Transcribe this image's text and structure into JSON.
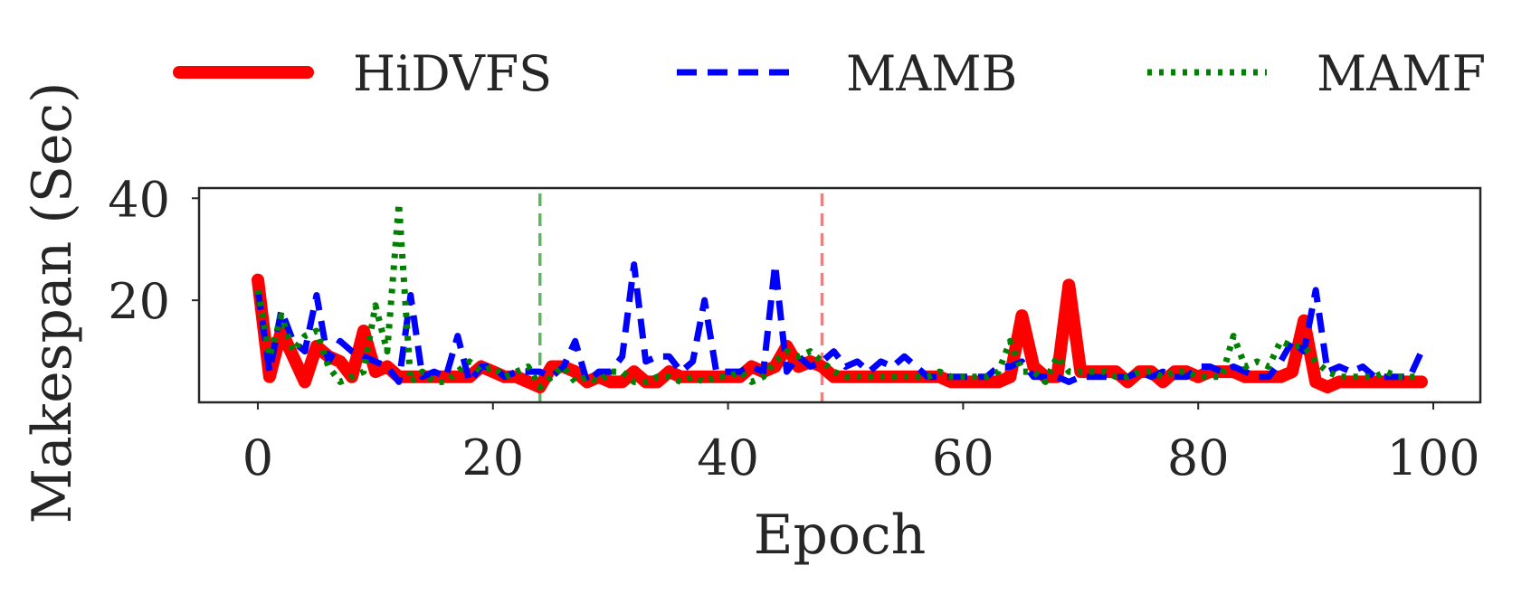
{
  "chart_data": {
    "type": "line",
    "title": "",
    "xlabel": "Epoch",
    "ylabel": "Makespan (Sec)",
    "xlim": [
      -5,
      104
    ],
    "ylim": [
      0,
      42
    ],
    "xticks": [
      0,
      20,
      40,
      60,
      80,
      100
    ],
    "yticks": [
      20,
      40
    ],
    "legend_position": "top",
    "vlines": [
      {
        "x": 24,
        "color": "#4caf50"
      },
      {
        "x": 48,
        "color": "#ff6b6b"
      }
    ],
    "series": [
      {
        "name": "HiDVFS",
        "color": "#ff0000",
        "style": "solid",
        "values": [
          24,
          5,
          14,
          9,
          4,
          11,
          9,
          8,
          5,
          14,
          6,
          7,
          5,
          5,
          5,
          5,
          5,
          5,
          5,
          7,
          6,
          5,
          5,
          4,
          3,
          7,
          7,
          6,
          4,
          5,
          4,
          4,
          6,
          4,
          4,
          6,
          5,
          5,
          5,
          5,
          5,
          5,
          7,
          6,
          7,
          11,
          7,
          8,
          7,
          5,
          5,
          5,
          5,
          5,
          5,
          5,
          5,
          5,
          5,
          4,
          4,
          4,
          4,
          4,
          5,
          17,
          7,
          5,
          5,
          23,
          6,
          6,
          6,
          6,
          4,
          6,
          6,
          4,
          6,
          6,
          5,
          6,
          6,
          6,
          5,
          5,
          5,
          5,
          6,
          16,
          4,
          3,
          4,
          4,
          4,
          4,
          4,
          4,
          4,
          4
        ]
      },
      {
        "name": "MAMB",
        "color": "#0000ff",
        "style": "dashed",
        "values": [
          22,
          6,
          18,
          12,
          10,
          21,
          8,
          12,
          10,
          9,
          8,
          7,
          4,
          21,
          5,
          6,
          5,
          13,
          4,
          7,
          7,
          5,
          6,
          6,
          6,
          5,
          7,
          12,
          4,
          6,
          6,
          9,
          27,
          8,
          9,
          9,
          6,
          8,
          20,
          6,
          6,
          6,
          7,
          6,
          27,
          6,
          9,
          7,
          8,
          10,
          7,
          8,
          6,
          8,
          7,
          9,
          7,
          5,
          5,
          5,
          5,
          5,
          5,
          7,
          7,
          8,
          5,
          5,
          5,
          4,
          5,
          5,
          5,
          5,
          5,
          6,
          5,
          6,
          5,
          5,
          7,
          7,
          6,
          7,
          6,
          5,
          5,
          8,
          12,
          10,
          22,
          6,
          7,
          6,
          7,
          5,
          5,
          5,
          5,
          10
        ]
      },
      {
        "name": "MAMF",
        "color": "#008000",
        "style": "dotted",
        "values": [
          22,
          9,
          17,
          10,
          13,
          14,
          7,
          4,
          5,
          6,
          19,
          10,
          39,
          4,
          6,
          4,
          4,
          6,
          8,
          6,
          7,
          5,
          6,
          7,
          3,
          5,
          7,
          4,
          5,
          4,
          6,
          6,
          4,
          4,
          5,
          5,
          4,
          5,
          4,
          5,
          5,
          6,
          4,
          5,
          8,
          10,
          9,
          10,
          8,
          6,
          5,
          5,
          5,
          5,
          5,
          5,
          5,
          5,
          6,
          5,
          5,
          5,
          5,
          6,
          12,
          6,
          6,
          4,
          9,
          6,
          6,
          6,
          6,
          5,
          5,
          6,
          6,
          5,
          6,
          6,
          5,
          5,
          5,
          13,
          7,
          8,
          7,
          12,
          11,
          11,
          8,
          6,
          5,
          5,
          5,
          5,
          6,
          5,
          5,
          5
        ]
      }
    ]
  }
}
